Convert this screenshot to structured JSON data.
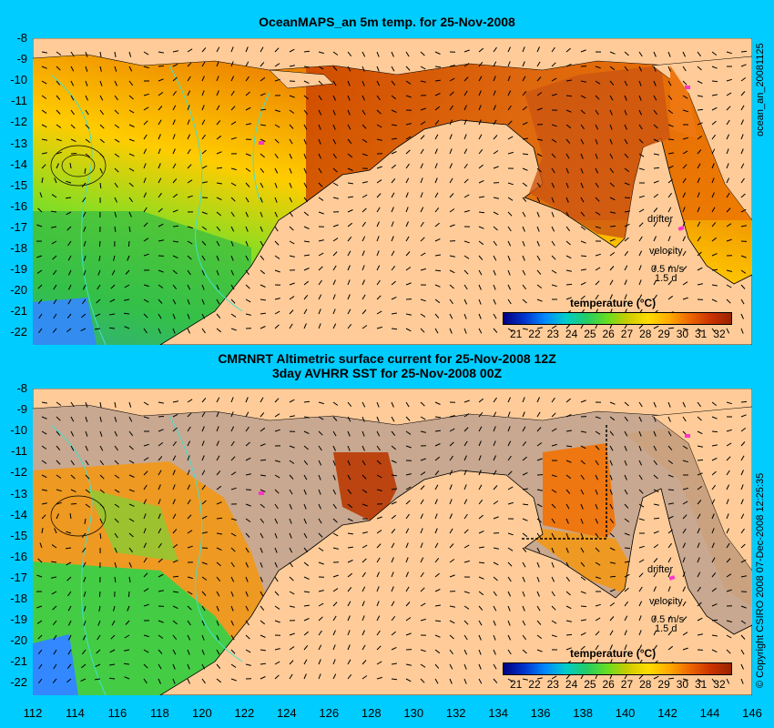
{
  "top_panel": {
    "title": "OceanMAPS_an 5m temp. for 25-Nov-2008",
    "side_label": "ocean_an_20081125",
    "colorbar_title": "temperature (°C)",
    "colorbar_ticks": [
      "21",
      "22",
      "23",
      "24",
      "25",
      "26",
      "27",
      "28",
      "29",
      "30",
      "31",
      "32"
    ],
    "drifter_label": "drifter",
    "velocity_label": "velocity",
    "velocity_scale": "0.5 m/s",
    "velocity_days": "1.5 d"
  },
  "bottom_panel": {
    "title_line1": "CMRNRT Altimetric surface current for 25-Nov-2008 12Z",
    "title_line2": "3day AVHRR SST for 25-Nov-2008 00Z",
    "side_label": "© Copyright CSIRO 2008   07-Dec-2008 12:25:35",
    "colorbar_title": "temperature (°C)",
    "colorbar_ticks": [
      "21",
      "22",
      "23",
      "24",
      "25",
      "26",
      "27",
      "28",
      "29",
      "30",
      "31",
      "32"
    ],
    "drifter_label": "drifter",
    "velocity_label": "velocity",
    "velocity_scale": "0.5 m/s",
    "velocity_days": "1.5 d"
  },
  "y_ticks": [
    "-8",
    "-9",
    "-10",
    "-11",
    "-12",
    "-13",
    "-14",
    "-15",
    "-16",
    "-17",
    "-18",
    "-19",
    "-20",
    "-21",
    "-22"
  ],
  "x_ticks": [
    "112",
    "114",
    "116",
    "118",
    "120",
    "122",
    "124",
    "126",
    "128",
    "130",
    "132",
    "134",
    "136",
    "138",
    "140",
    "142",
    "144",
    "146"
  ],
  "colors": {
    "background": "#00ccff",
    "land": "#ffcc99",
    "cloud_gray": "#c8a890",
    "drifter": "#ff33cc",
    "contour": "#40e0d0"
  }
}
